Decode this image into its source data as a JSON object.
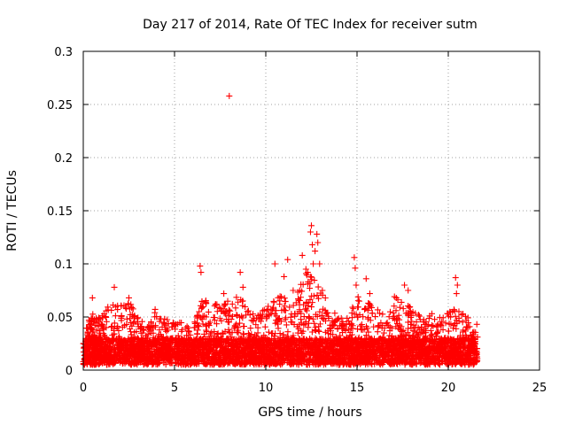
{
  "chart_data": {
    "type": "scatter",
    "title": "Day 217 of 2014, Rate Of TEC Index for receiver sutm",
    "xlabel": "GPS time / hours",
    "ylabel": "ROTI / TECUs",
    "xlim": [
      0,
      25
    ],
    "ylim": [
      0,
      0.3
    ],
    "xticks": [
      0,
      5,
      10,
      15,
      20,
      25
    ],
    "xtick_labels": [
      "0",
      "5",
      "10",
      "15",
      "20",
      "25"
    ],
    "yticks": [
      0,
      0.05,
      0.1,
      0.15,
      0.2,
      0.25,
      0.3
    ],
    "ytick_labels": [
      "0",
      "0.05",
      "0.1",
      "0.15",
      "0.2",
      "0.25",
      "0.3"
    ],
    "grid": true,
    "marker": "+",
    "marker_color": "#ff0000",
    "series": [
      {
        "name": "ROTI",
        "bulk_profile": {
          "x_range": [
            0,
            21.6
          ],
          "base_low": 0.005,
          "base_high": 0.03,
          "envelope_hours": [
            0,
            0.5,
            1,
            1.5,
            2,
            2.5,
            3,
            3.5,
            4,
            4.5,
            5,
            5.5,
            6,
            6.5,
            7,
            7.5,
            8,
            8.5,
            9,
            9.5,
            10,
            10.5,
            11,
            11.5,
            12,
            12.5,
            13,
            13.5,
            14,
            14.5,
            15,
            15.5,
            16,
            16.5,
            17,
            17.5,
            18,
            18.5,
            19,
            19.5,
            20,
            20.5,
            21,
            21.6
          ],
          "envelope_roti": [
            0.035,
            0.055,
            0.05,
            0.065,
            0.06,
            0.065,
            0.05,
            0.045,
            0.06,
            0.05,
            0.045,
            0.045,
            0.04,
            0.07,
            0.06,
            0.065,
            0.065,
            0.07,
            0.06,
            0.05,
            0.06,
            0.07,
            0.075,
            0.065,
            0.09,
            0.1,
            0.08,
            0.06,
            0.05,
            0.05,
            0.07,
            0.065,
            0.06,
            0.055,
            0.07,
            0.065,
            0.06,
            0.05,
            0.055,
            0.05,
            0.055,
            0.06,
            0.05,
            0.045
          ],
          "density_per_hour": 230
        },
        "points": [
          {
            "x": 8.0,
            "y": 0.258
          },
          {
            "x": 0.5,
            "y": 0.068
          },
          {
            "x": 1.7,
            "y": 0.078
          },
          {
            "x": 2.5,
            "y": 0.068
          },
          {
            "x": 6.4,
            "y": 0.098
          },
          {
            "x": 6.45,
            "y": 0.092
          },
          {
            "x": 7.7,
            "y": 0.072
          },
          {
            "x": 8.6,
            "y": 0.092
          },
          {
            "x": 8.75,
            "y": 0.078
          },
          {
            "x": 10.5,
            "y": 0.1
          },
          {
            "x": 11.0,
            "y": 0.088
          },
          {
            "x": 11.2,
            "y": 0.104
          },
          {
            "x": 11.5,
            "y": 0.075
          },
          {
            "x": 12.0,
            "y": 0.108
          },
          {
            "x": 12.2,
            "y": 0.095
          },
          {
            "x": 12.3,
            "y": 0.092
          },
          {
            "x": 12.45,
            "y": 0.13
          },
          {
            "x": 12.5,
            "y": 0.136
          },
          {
            "x": 12.55,
            "y": 0.118
          },
          {
            "x": 12.6,
            "y": 0.1
          },
          {
            "x": 12.7,
            "y": 0.112
          },
          {
            "x": 12.8,
            "y": 0.128
          },
          {
            "x": 12.85,
            "y": 0.12
          },
          {
            "x": 12.95,
            "y": 0.1
          },
          {
            "x": 13.1,
            "y": 0.075
          },
          {
            "x": 14.85,
            "y": 0.106
          },
          {
            "x": 14.9,
            "y": 0.096
          },
          {
            "x": 14.95,
            "y": 0.08
          },
          {
            "x": 15.5,
            "y": 0.086
          },
          {
            "x": 15.7,
            "y": 0.072
          },
          {
            "x": 17.6,
            "y": 0.08
          },
          {
            "x": 17.8,
            "y": 0.075
          },
          {
            "x": 20.4,
            "y": 0.087
          },
          {
            "x": 20.5,
            "y": 0.08
          },
          {
            "x": 20.45,
            "y": 0.072
          }
        ]
      }
    ]
  }
}
